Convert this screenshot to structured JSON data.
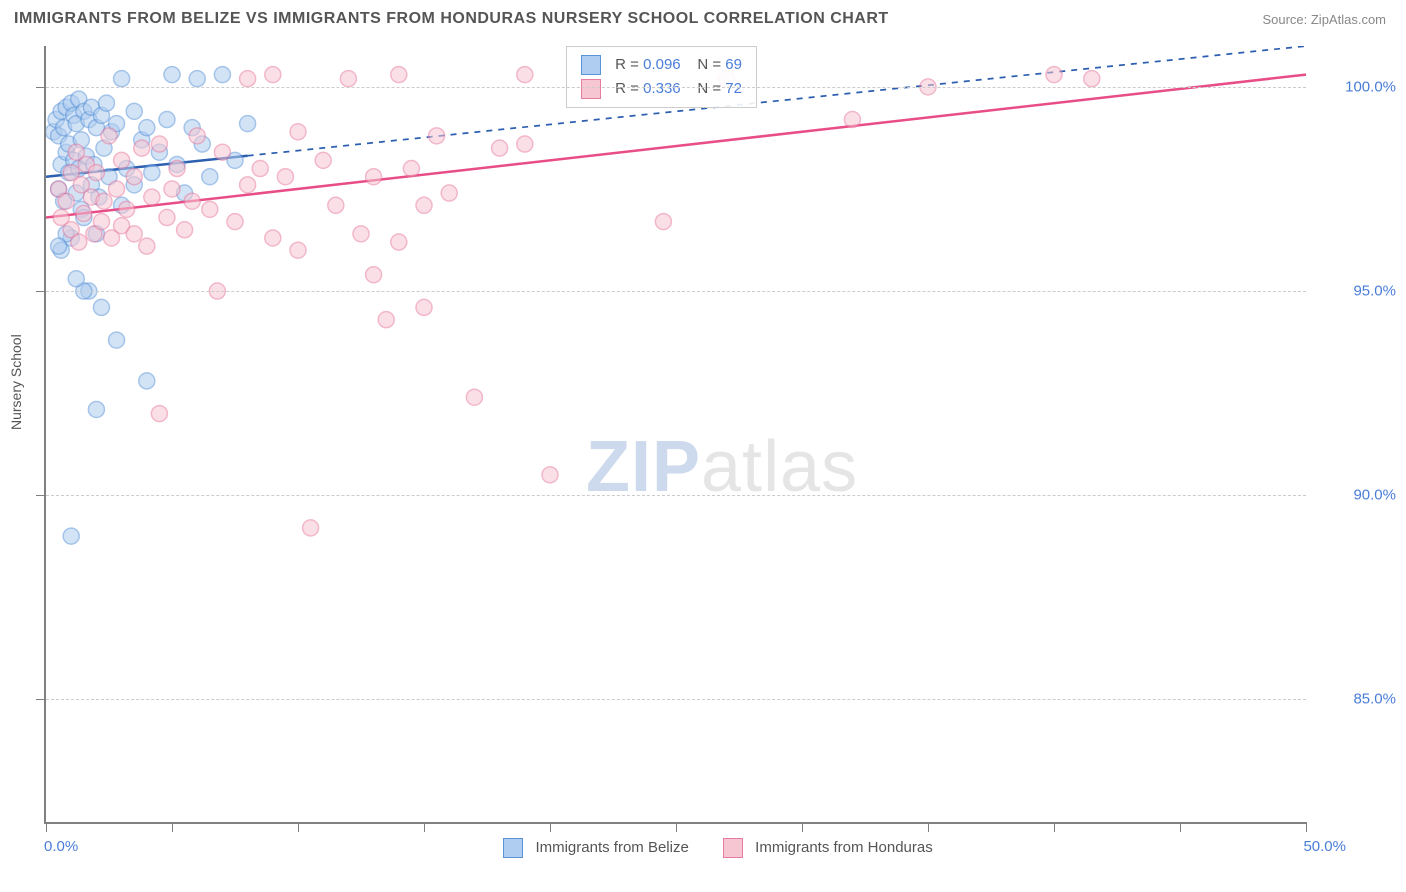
{
  "title": "IMMIGRANTS FROM BELIZE VS IMMIGRANTS FROM HONDURAS NURSERY SCHOOL CORRELATION CHART",
  "source_label": "Source: ZipAtlas.com",
  "y_axis_label": "Nursery School",
  "watermark": {
    "zip": "ZIP",
    "atlas": "atlas"
  },
  "chart": {
    "type": "scatter",
    "xlim": [
      0,
      50
    ],
    "ylim": [
      82,
      101
    ],
    "x_tick_positions": [
      0,
      5,
      10,
      15,
      20,
      25,
      30,
      35,
      40,
      45,
      50
    ],
    "y_tick_positions": [
      85,
      90,
      95,
      100
    ],
    "y_tick_labels": [
      "85.0%",
      "90.0%",
      "95.0%",
      "100.0%"
    ],
    "x_min_label": "0.0%",
    "x_max_label": "50.0%",
    "background_color": "#ffffff",
    "grid_color": "#cccccc",
    "axis_color": "#808080",
    "label_color": "#4a7dd8",
    "point_radius": 8,
    "point_opacity": 0.55,
    "series": [
      {
        "name": "Immigrants from Belize",
        "color_fill": "#aecdf0",
        "color_stroke": "#5a93d8",
        "R": "0.096",
        "N": "69",
        "line": {
          "x1": 0,
          "y1": 97.8,
          "x2": 50,
          "y2": 101.0,
          "solid_until_x": 8,
          "stroke": "#2d5fb0",
          "width": 2.5
        },
        "points": [
          [
            0.3,
            98.9
          ],
          [
            0.4,
            99.2
          ],
          [
            0.5,
            97.5
          ],
          [
            0.5,
            98.8
          ],
          [
            0.6,
            99.4
          ],
          [
            0.6,
            98.1
          ],
          [
            0.7,
            99.0
          ],
          [
            0.7,
            97.2
          ],
          [
            0.8,
            98.4
          ],
          [
            0.8,
            99.5
          ],
          [
            0.9,
            97.9
          ],
          [
            0.9,
            98.6
          ],
          [
            1.0,
            99.6
          ],
          [
            1.0,
            96.3
          ],
          [
            1.1,
            98.2
          ],
          [
            1.1,
            99.3
          ],
          [
            1.2,
            97.4
          ],
          [
            1.2,
            99.1
          ],
          [
            1.3,
            98.0
          ],
          [
            1.3,
            99.7
          ],
          [
            1.4,
            97.0
          ],
          [
            1.4,
            98.7
          ],
          [
            1.5,
            99.4
          ],
          [
            1.5,
            96.8
          ],
          [
            1.6,
            98.3
          ],
          [
            1.7,
            99.2
          ],
          [
            1.7,
            95.0
          ],
          [
            1.8,
            97.6
          ],
          [
            1.8,
            99.5
          ],
          [
            1.9,
            98.1
          ],
          [
            2.0,
            96.4
          ],
          [
            2.0,
            99.0
          ],
          [
            2.1,
            97.3
          ],
          [
            2.2,
            99.3
          ],
          [
            2.2,
            94.6
          ],
          [
            2.3,
            98.5
          ],
          [
            2.4,
            99.6
          ],
          [
            2.5,
            97.8
          ],
          [
            2.6,
            98.9
          ],
          [
            2.8,
            93.8
          ],
          [
            2.8,
            99.1
          ],
          [
            3.0,
            97.1
          ],
          [
            3.0,
            100.2
          ],
          [
            3.2,
            98.0
          ],
          [
            3.5,
            99.4
          ],
          [
            3.5,
            97.6
          ],
          [
            3.8,
            98.7
          ],
          [
            4.0,
            92.8
          ],
          [
            4.0,
            99.0
          ],
          [
            4.2,
            97.9
          ],
          [
            4.5,
            98.4
          ],
          [
            4.8,
            99.2
          ],
          [
            5.0,
            100.3
          ],
          [
            5.2,
            98.1
          ],
          [
            5.5,
            97.4
          ],
          [
            5.8,
            99.0
          ],
          [
            6.0,
            100.2
          ],
          [
            6.2,
            98.6
          ],
          [
            6.5,
            97.8
          ],
          [
            7.0,
            100.3
          ],
          [
            7.5,
            98.2
          ],
          [
            8.0,
            99.1
          ],
          [
            1.0,
            89.0
          ],
          [
            2.0,
            92.1
          ],
          [
            1.5,
            95.0
          ],
          [
            1.2,
            95.3
          ],
          [
            0.6,
            96.0
          ],
          [
            0.8,
            96.4
          ],
          [
            0.5,
            96.1
          ]
        ]
      },
      {
        "name": "Immigrants from Honduras",
        "color_fill": "#f6c7d3",
        "color_stroke": "#e87ca0",
        "R": "0.336",
        "N": "72",
        "line": {
          "x1": 0,
          "y1": 96.8,
          "x2": 50,
          "y2": 100.3,
          "solid_until_x": 50,
          "stroke": "#e84d87",
          "width": 2.5
        },
        "points": [
          [
            0.5,
            97.5
          ],
          [
            0.6,
            96.8
          ],
          [
            0.8,
            97.2
          ],
          [
            1.0,
            96.5
          ],
          [
            1.0,
            97.9
          ],
          [
            1.2,
            98.4
          ],
          [
            1.3,
            96.2
          ],
          [
            1.4,
            97.6
          ],
          [
            1.5,
            96.9
          ],
          [
            1.6,
            98.1
          ],
          [
            1.8,
            97.3
          ],
          [
            1.9,
            96.4
          ],
          [
            2.0,
            97.9
          ],
          [
            2.2,
            96.7
          ],
          [
            2.3,
            97.2
          ],
          [
            2.5,
            98.8
          ],
          [
            2.6,
            96.3
          ],
          [
            2.8,
            97.5
          ],
          [
            3.0,
            96.6
          ],
          [
            3.0,
            98.2
          ],
          [
            3.2,
            97.0
          ],
          [
            3.5,
            96.4
          ],
          [
            3.5,
            97.8
          ],
          [
            3.8,
            98.5
          ],
          [
            4.0,
            96.1
          ],
          [
            4.2,
            97.3
          ],
          [
            4.5,
            98.6
          ],
          [
            4.8,
            96.8
          ],
          [
            5.0,
            97.5
          ],
          [
            5.2,
            98.0
          ],
          [
            5.5,
            96.5
          ],
          [
            5.8,
            97.2
          ],
          [
            6.0,
            98.8
          ],
          [
            6.5,
            97.0
          ],
          [
            6.8,
            95.0
          ],
          [
            7.0,
            98.4
          ],
          [
            7.5,
            96.7
          ],
          [
            8.0,
            97.6
          ],
          [
            8.0,
            100.2
          ],
          [
            8.5,
            98.0
          ],
          [
            9.0,
            100.3
          ],
          [
            9.0,
            96.3
          ],
          [
            9.5,
            97.8
          ],
          [
            10.0,
            98.9
          ],
          [
            10.0,
            96.0
          ],
          [
            10.5,
            89.2
          ],
          [
            11.0,
            98.2
          ],
          [
            11.5,
            97.1
          ],
          [
            12.0,
            100.2
          ],
          [
            12.5,
            96.4
          ],
          [
            13.0,
            97.8
          ],
          [
            13.0,
            95.4
          ],
          [
            13.5,
            94.3
          ],
          [
            14.0,
            96.2
          ],
          [
            14.0,
            100.3
          ],
          [
            14.5,
            98.0
          ],
          [
            15.0,
            97.1
          ],
          [
            15.0,
            94.6
          ],
          [
            15.5,
            98.8
          ],
          [
            16.0,
            97.4
          ],
          [
            17.0,
            92.4
          ],
          [
            19.0,
            100.3
          ],
          [
            18.0,
            98.5
          ],
          [
            19.0,
            98.6
          ],
          [
            20.0,
            90.5
          ],
          [
            24.5,
            96.7
          ],
          [
            27.0,
            100.2
          ],
          [
            32.0,
            99.2
          ],
          [
            35.0,
            100.0
          ],
          [
            40.0,
            100.3
          ],
          [
            41.5,
            100.2
          ],
          [
            4.5,
            92.0
          ]
        ]
      }
    ]
  },
  "bottom_legend": {
    "s1_label": "Immigrants from Belize",
    "s2_label": "Immigrants from Honduras"
  },
  "stat_legend": {
    "r_label": "R =",
    "n_label": "N ="
  }
}
